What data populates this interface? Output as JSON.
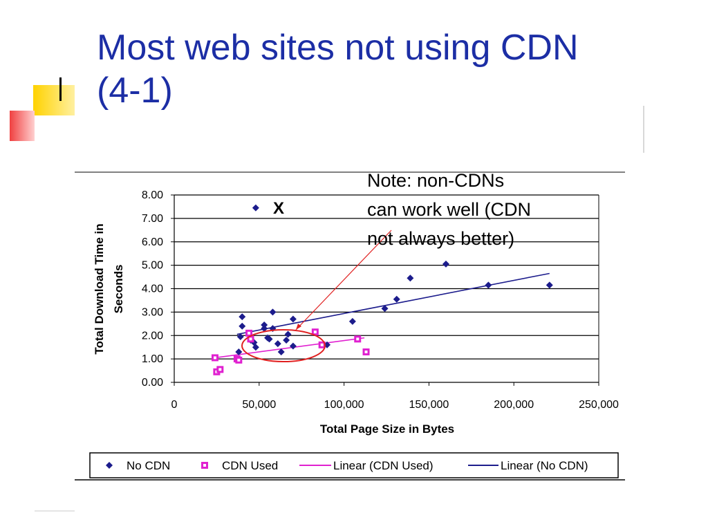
{
  "slide": {
    "title_line1": "Most web sites not using CDN",
    "title_line2": "(4-1)",
    "note_lines": [
      "Note:  non-CDNs",
      "can work well (CDN",
      "not always better)"
    ],
    "colors": {
      "title": "#1c2ea5",
      "deco_yellow": "#ffd200",
      "deco_red": "#f04040"
    }
  },
  "chart_data": {
    "type": "scatter",
    "xlabel": "Total Page Size in Bytes",
    "ylabel_line1": "Total Download Time in",
    "ylabel_line2": "Seconds",
    "xlim": [
      0,
      250000
    ],
    "ylim": [
      0,
      8
    ],
    "x_ticks": [
      "0",
      "50,000",
      "100,000",
      "150,000",
      "200,000",
      "250,000"
    ],
    "y_ticks": [
      "0.00",
      "1.00",
      "2.00",
      "3.00",
      "4.00",
      "5.00",
      "6.00",
      "7.00",
      "8.00"
    ],
    "grid": "horizontal",
    "legend_position": "bottom",
    "annotation_mark": "X",
    "series": [
      {
        "name": "No CDN",
        "marker": "diamond",
        "color": "#1c1c8c",
        "points": [
          [
            48000,
            7.45
          ],
          [
            40000,
            2.8
          ],
          [
            40000,
            2.4
          ],
          [
            39000,
            1.95
          ],
          [
            38000,
            1.3
          ],
          [
            45000,
            1.8
          ],
          [
            47000,
            1.7
          ],
          [
            48000,
            1.5
          ],
          [
            53000,
            2.45
          ],
          [
            53000,
            2.3
          ],
          [
            55000,
            1.9
          ],
          [
            56000,
            1.85
          ],
          [
            58000,
            2.3
          ],
          [
            58000,
            3.0
          ],
          [
            61000,
            1.65
          ],
          [
            63000,
            1.3
          ],
          [
            66000,
            1.8
          ],
          [
            67000,
            2.05
          ],
          [
            70000,
            2.7
          ],
          [
            70000,
            1.55
          ],
          [
            90000,
            1.6
          ],
          [
            105000,
            2.6
          ],
          [
            124000,
            3.15
          ],
          [
            131000,
            3.55
          ],
          [
            139000,
            4.45
          ],
          [
            160000,
            5.05
          ],
          [
            185000,
            4.15
          ],
          [
            221000,
            4.15
          ]
        ]
      },
      {
        "name": "CDN Used",
        "marker": "square",
        "color": "#e020d0",
        "points": [
          [
            24000,
            1.05
          ],
          [
            25000,
            0.45
          ],
          [
            27000,
            0.55
          ],
          [
            37000,
            1.0
          ],
          [
            38000,
            0.95
          ],
          [
            44000,
            2.1
          ],
          [
            45000,
            1.85
          ],
          [
            83000,
            2.15
          ],
          [
            87000,
            1.6
          ],
          [
            108000,
            1.85
          ],
          [
            113000,
            1.3
          ]
        ]
      }
    ],
    "trendlines": [
      {
        "name": "Linear (CDN Used)",
        "color": "#e020d0",
        "from": [
          24000,
          1.05
        ],
        "to": [
          112000,
          1.9
        ]
      },
      {
        "name": "Linear (No CDN)",
        "color": "#1c1c8c",
        "from": [
          37000,
          2.05
        ],
        "to": [
          221000,
          4.65
        ]
      }
    ]
  }
}
